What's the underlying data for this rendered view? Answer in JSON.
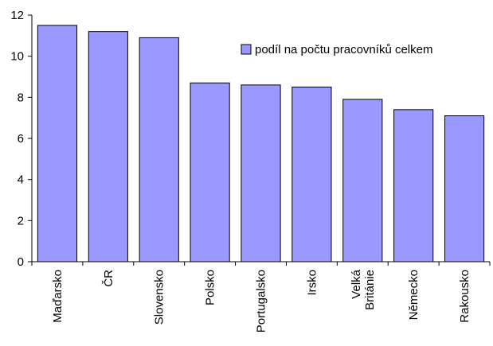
{
  "chart_data": {
    "type": "bar",
    "categories": [
      "Maďarsko",
      "ČR",
      "Slovensko",
      "Polsko",
      "Portugalsko",
      "Irsko",
      "Velká Británie",
      "Německo",
      "Rakousko"
    ],
    "category_label_lines": [
      [
        "Maďarsko"
      ],
      [
        "ČR"
      ],
      [
        "Slovensko"
      ],
      [
        "Polsko"
      ],
      [
        "Portugalsko"
      ],
      [
        "Irsko"
      ],
      [
        "Velká",
        "Británie"
      ],
      [
        "Německo"
      ],
      [
        "Rakousko"
      ]
    ],
    "series": [
      {
        "name": "podíl na počtu pracovníků celkem",
        "values": [
          11.5,
          11.2,
          10.9,
          8.7,
          8.6,
          8.5,
          7.9,
          7.4,
          7.1
        ]
      }
    ],
    "yticks": [
      "0",
      "2",
      "4",
      "6",
      "8",
      "10",
      "12"
    ],
    "ylim": [
      0,
      12
    ],
    "grid": false,
    "legend_position": "top-right",
    "bar_color": "#9999ff"
  }
}
